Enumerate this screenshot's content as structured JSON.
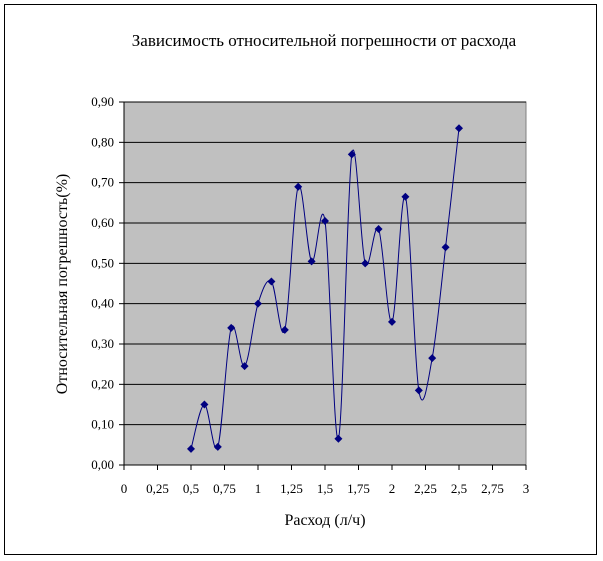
{
  "chart_data": {
    "type": "scatter",
    "title": "Зависимость относительной погрешности от расхода",
    "xlabel": "Расход (л/ч)",
    "ylabel": "Относительная погрешность(%)",
    "xlim": [
      0,
      3
    ],
    "ylim": [
      0,
      0.9
    ],
    "x_ticks": [
      "0",
      "0,25",
      "0,5",
      "0,75",
      "1",
      "1,25",
      "1,5",
      "1,75",
      "2",
      "2,25",
      "2,5",
      "2,75",
      "3"
    ],
    "y_ticks": [
      "0,00",
      "0,10",
      "0,20",
      "0,30",
      "0,40",
      "0,50",
      "0,60",
      "0,70",
      "0,80",
      "0,90"
    ],
    "grid": "horizontal",
    "line": "smoothed",
    "legend": "none",
    "colors": {
      "plot_area": "#c0c0c0",
      "series": "#000080",
      "gridlines": "#000000"
    },
    "series": [
      {
        "x": [
          0.5,
          0.6,
          0.7,
          0.8,
          0.9,
          1.0,
          1.1,
          1.2,
          1.3,
          1.4,
          1.5,
          1.6,
          1.7,
          1.8,
          1.9,
          2.0,
          2.1,
          2.2,
          2.3,
          2.4,
          2.5
        ],
        "y": [
          0.04,
          0.15,
          0.045,
          0.34,
          0.245,
          0.4,
          0.455,
          0.335,
          0.69,
          0.505,
          0.605,
          0.065,
          0.77,
          0.5,
          0.585,
          0.355,
          0.665,
          0.185,
          0.265,
          0.54,
          0.835
        ]
      }
    ]
  }
}
